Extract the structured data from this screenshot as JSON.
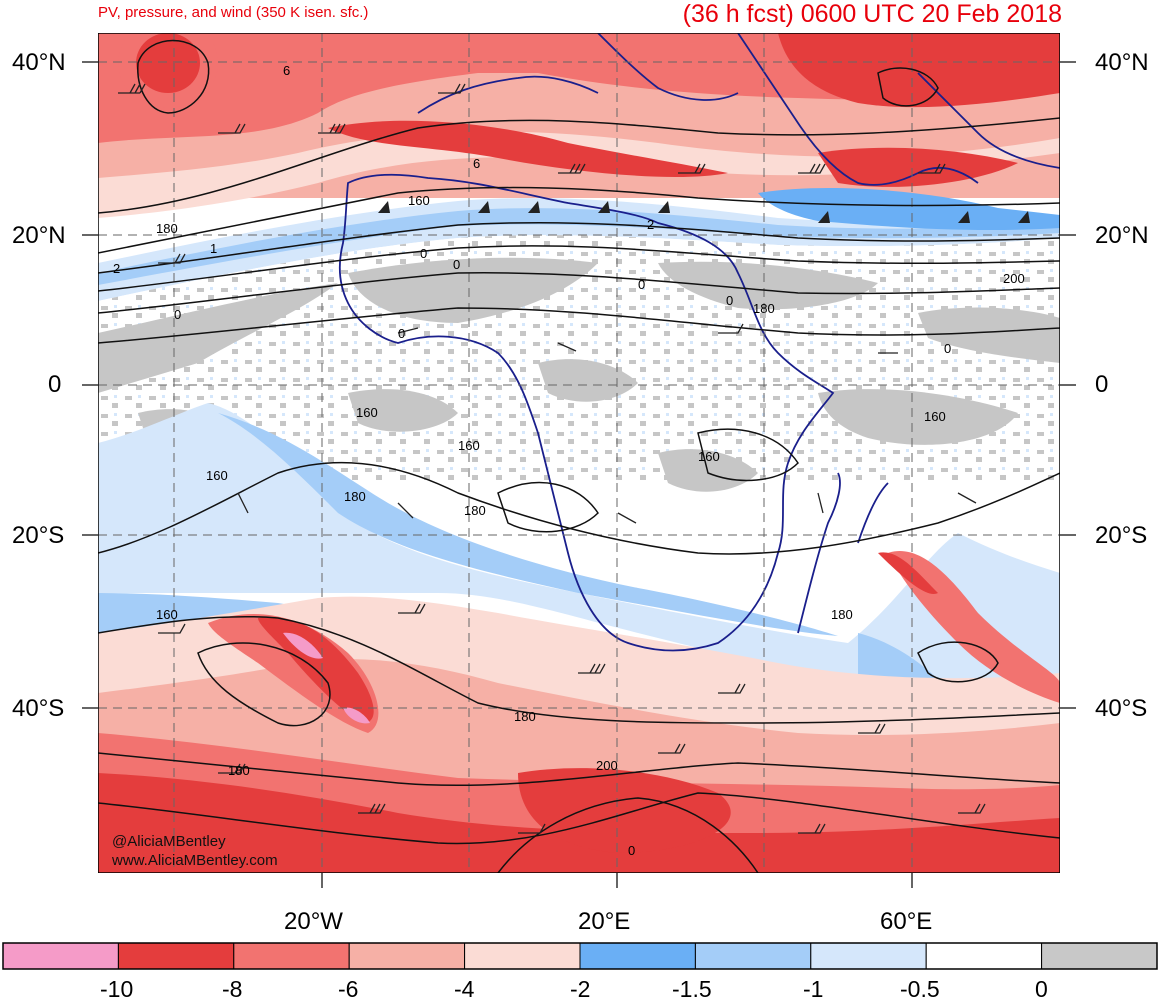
{
  "title_left": "PV, pressure, and wind (350 K isen. sfc.)",
  "title_right": "(36 h fcst) 0600 UTC 20 Feb 2018",
  "lat_labels": [
    "40°N",
    "20°N",
    "0",
    "20°S",
    "40°S"
  ],
  "lon_labels": [
    "20°W",
    "20°E",
    "60°E"
  ],
  "contour_labels": [
    "6",
    "6",
    "180",
    "160",
    "0",
    "0",
    "0",
    "2",
    "1",
    "0",
    "0",
    "2",
    "0",
    "180",
    "200",
    "0",
    "160",
    "160",
    "160",
    "180",
    "180",
    "160",
    "160",
    "180",
    "180",
    "200",
    "180",
    "160",
    "0"
  ],
  "credit": [
    "@AliciaMBentley",
    "www.AliciaMBentley.com"
  ],
  "colorbar": {
    "labels": [
      "-10",
      "-8",
      "-6",
      "-4",
      "-2",
      "-1.5",
      "-1",
      "-0.5",
      "0"
    ],
    "colors": [
      "#f59bc8",
      "#e43d3d",
      "#f27370",
      "#f6b0a6",
      "#fbdcd5",
      "#6aaff5",
      "#a4cdf8",
      "#d5e7fb",
      "#ffffff",
      "#c8c8c8"
    ]
  },
  "map_colors": {
    "ocean_white": "#ffffff",
    "gray": "#c6c6c6",
    "coast": "#1a1f8c",
    "contour": "#111111",
    "grid": "#666666"
  }
}
